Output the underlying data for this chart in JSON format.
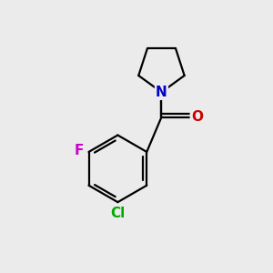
{
  "background_color": "#ebebeb",
  "bond_color": "#000000",
  "N_color": "#0000cc",
  "O_color": "#cc0000",
  "F_color": "#cc00cc",
  "Cl_color": "#00aa00",
  "line_width": 1.6,
  "font_size": 11,
  "figsize": [
    3.0,
    3.0
  ],
  "dpi": 100,
  "xlim": [
    0,
    10
  ],
  "ylim": [
    0,
    10
  ]
}
